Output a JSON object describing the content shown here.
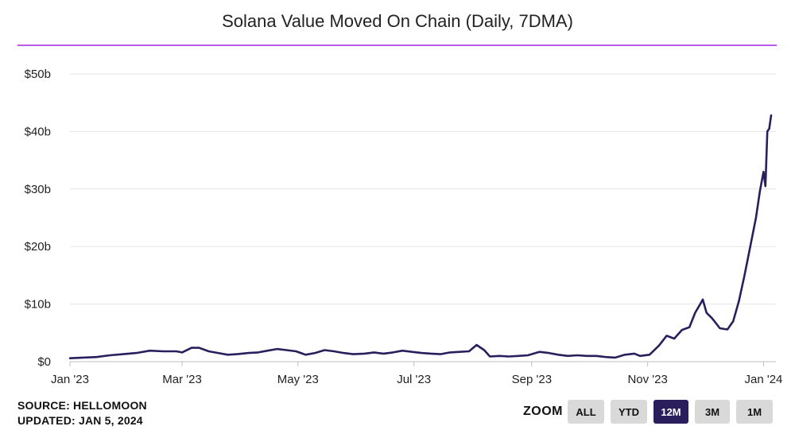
{
  "title": "Solana Value Moved On Chain (Daily, 7DMA)",
  "colors": {
    "line": "#2a1f5c",
    "rule": "#b95be8",
    "grid": "#e6e6e6",
    "active_button": "#2a1f5c",
    "button": "#d9d9d9"
  },
  "footer": {
    "source": "SOURCE: HELLOMOON",
    "updated": "UPDATED: JAN 5, 2024"
  },
  "zoom": {
    "label": "ZOOM",
    "buttons": [
      "ALL",
      "YTD",
      "12M",
      "3M",
      "1M"
    ],
    "active": "12M"
  },
  "chart_data": {
    "type": "line",
    "title": "Solana Value Moved On Chain (Daily, 7DMA)",
    "xlabel": "",
    "ylabel": "",
    "ylim": [
      0,
      50
    ],
    "y_unit": "billion USD",
    "y_ticks": [
      {
        "value": 0,
        "label": "$0"
      },
      {
        "value": 10,
        "label": "$10b"
      },
      {
        "value": 20,
        "label": "$20b"
      },
      {
        "value": 30,
        "label": "$30b"
      },
      {
        "value": 40,
        "label": "$40b"
      },
      {
        "value": 50,
        "label": "$50b"
      }
    ],
    "x_range": [
      "2023-01-01",
      "2024-01-05"
    ],
    "x_ticks": [
      {
        "date": "2023-01-01",
        "label": "Jan '23"
      },
      {
        "date": "2023-03-01",
        "label": "Mar '23"
      },
      {
        "date": "2023-05-01",
        "label": "May '23"
      },
      {
        "date": "2023-07-01",
        "label": "Jul '23"
      },
      {
        "date": "2023-09-01",
        "label": "Sep '23"
      },
      {
        "date": "2023-11-01",
        "label": "Nov '23"
      },
      {
        "date": "2024-01-01",
        "label": "Jan '24"
      }
    ],
    "grid": true,
    "legend": "none",
    "series": [
      {
        "points": [
          [
            "2023-01-01",
            0.6
          ],
          [
            "2023-01-08",
            0.7
          ],
          [
            "2023-01-15",
            0.8
          ],
          [
            "2023-01-22",
            1.1
          ],
          [
            "2023-01-29",
            1.3
          ],
          [
            "2023-02-05",
            1.5
          ],
          [
            "2023-02-12",
            1.9
          ],
          [
            "2023-02-19",
            1.8
          ],
          [
            "2023-02-26",
            1.8
          ],
          [
            "2023-03-01",
            1.6
          ],
          [
            "2023-03-06",
            2.4
          ],
          [
            "2023-03-10",
            2.4
          ],
          [
            "2023-03-15",
            1.8
          ],
          [
            "2023-03-20",
            1.5
          ],
          [
            "2023-03-25",
            1.2
          ],
          [
            "2023-03-30",
            1.3
          ],
          [
            "2023-04-05",
            1.5
          ],
          [
            "2023-04-10",
            1.6
          ],
          [
            "2023-04-15",
            1.9
          ],
          [
            "2023-04-20",
            2.2
          ],
          [
            "2023-04-25",
            2.0
          ],
          [
            "2023-04-30",
            1.8
          ],
          [
            "2023-05-05",
            1.2
          ],
          [
            "2023-05-10",
            1.5
          ],
          [
            "2023-05-15",
            2.0
          ],
          [
            "2023-05-20",
            1.8
          ],
          [
            "2023-05-25",
            1.5
          ],
          [
            "2023-05-30",
            1.3
          ],
          [
            "2023-06-05",
            1.4
          ],
          [
            "2023-06-10",
            1.6
          ],
          [
            "2023-06-15",
            1.4
          ],
          [
            "2023-06-20",
            1.6
          ],
          [
            "2023-06-25",
            1.9
          ],
          [
            "2023-06-30",
            1.7
          ],
          [
            "2023-07-05",
            1.5
          ],
          [
            "2023-07-10",
            1.4
          ],
          [
            "2023-07-15",
            1.3
          ],
          [
            "2023-07-20",
            1.6
          ],
          [
            "2023-07-25",
            1.7
          ],
          [
            "2023-07-30",
            1.8
          ],
          [
            "2023-08-03",
            2.9
          ],
          [
            "2023-08-07",
            2.0
          ],
          [
            "2023-08-10",
            0.9
          ],
          [
            "2023-08-15",
            1.0
          ],
          [
            "2023-08-20",
            0.9
          ],
          [
            "2023-08-25",
            1.0
          ],
          [
            "2023-08-30",
            1.1
          ],
          [
            "2023-09-05",
            1.7
          ],
          [
            "2023-09-10",
            1.5
          ],
          [
            "2023-09-15",
            1.2
          ],
          [
            "2023-09-20",
            1.0
          ],
          [
            "2023-09-25",
            1.1
          ],
          [
            "2023-09-30",
            1.0
          ],
          [
            "2023-10-05",
            1.0
          ],
          [
            "2023-10-10",
            0.8
          ],
          [
            "2023-10-15",
            0.7
          ],
          [
            "2023-10-20",
            1.2
          ],
          [
            "2023-10-25",
            1.4
          ],
          [
            "2023-10-28",
            1.0
          ],
          [
            "2023-11-02",
            1.2
          ],
          [
            "2023-11-07",
            2.8
          ],
          [
            "2023-11-11",
            4.5
          ],
          [
            "2023-11-15",
            4.0
          ],
          [
            "2023-11-19",
            5.5
          ],
          [
            "2023-11-23",
            6.0
          ],
          [
            "2023-11-26",
            8.5
          ],
          [
            "2023-11-29",
            10.2
          ],
          [
            "2023-11-30",
            10.8
          ],
          [
            "2023-12-02",
            8.5
          ],
          [
            "2023-12-05",
            7.5
          ],
          [
            "2023-12-09",
            5.8
          ],
          [
            "2023-12-13",
            5.6
          ],
          [
            "2023-12-16",
            7.0
          ],
          [
            "2023-12-19",
            10.5
          ],
          [
            "2023-12-22",
            15.0
          ],
          [
            "2023-12-25",
            20.0
          ],
          [
            "2023-12-28",
            25.0
          ],
          [
            "2023-12-30",
            29.5
          ],
          [
            "2024-01-01",
            33.0
          ],
          [
            "2024-01-02",
            30.5
          ],
          [
            "2024-01-03",
            40.0
          ],
          [
            "2024-01-04",
            40.5
          ],
          [
            "2024-01-05",
            42.8
          ]
        ]
      }
    ]
  }
}
